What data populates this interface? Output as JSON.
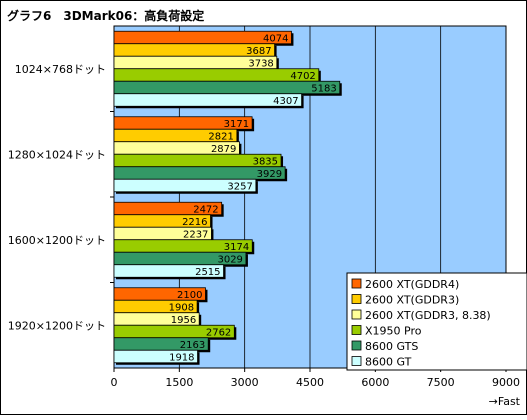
{
  "chart_data": {
    "type": "bar",
    "orientation": "horizontal",
    "title": "グラフ6　3DMark06：高負荷設定",
    "xlabel": "→Fast",
    "xlim": [
      0,
      9000
    ],
    "xticks": [
      0,
      1500,
      3000,
      4500,
      6000,
      7500,
      9000
    ],
    "grid": "vertical",
    "legend_position": "bottom-right",
    "categories": [
      "1024×768ドット",
      "1280×1024ドット",
      "1600×1200ドット",
      "1920×1200ドット"
    ],
    "series": [
      {
        "name": "2600 XT(GDDR4)",
        "color": "#ff6600",
        "values": [
          4074,
          3171,
          2472,
          2100
        ]
      },
      {
        "name": "2600 XT(GDDR3)",
        "color": "#ffcc00",
        "values": [
          3687,
          2821,
          2216,
          1908
        ]
      },
      {
        "name": "2600 XT(GDDR3, 8.38)",
        "color": "#ffff99",
        "values": [
          3738,
          2879,
          2237,
          1956
        ]
      },
      {
        "name": "X1950 Pro",
        "color": "#99cc00",
        "values": [
          4702,
          3835,
          3174,
          2762
        ]
      },
      {
        "name": "8600 GTS",
        "color": "#339966",
        "values": [
          5183,
          3929,
          3029,
          2163
        ]
      },
      {
        "name": "8600 GT",
        "color": "#ccffff",
        "values": [
          4307,
          3257,
          2515,
          1918
        ]
      }
    ],
    "plot_background": "#99ccff"
  }
}
